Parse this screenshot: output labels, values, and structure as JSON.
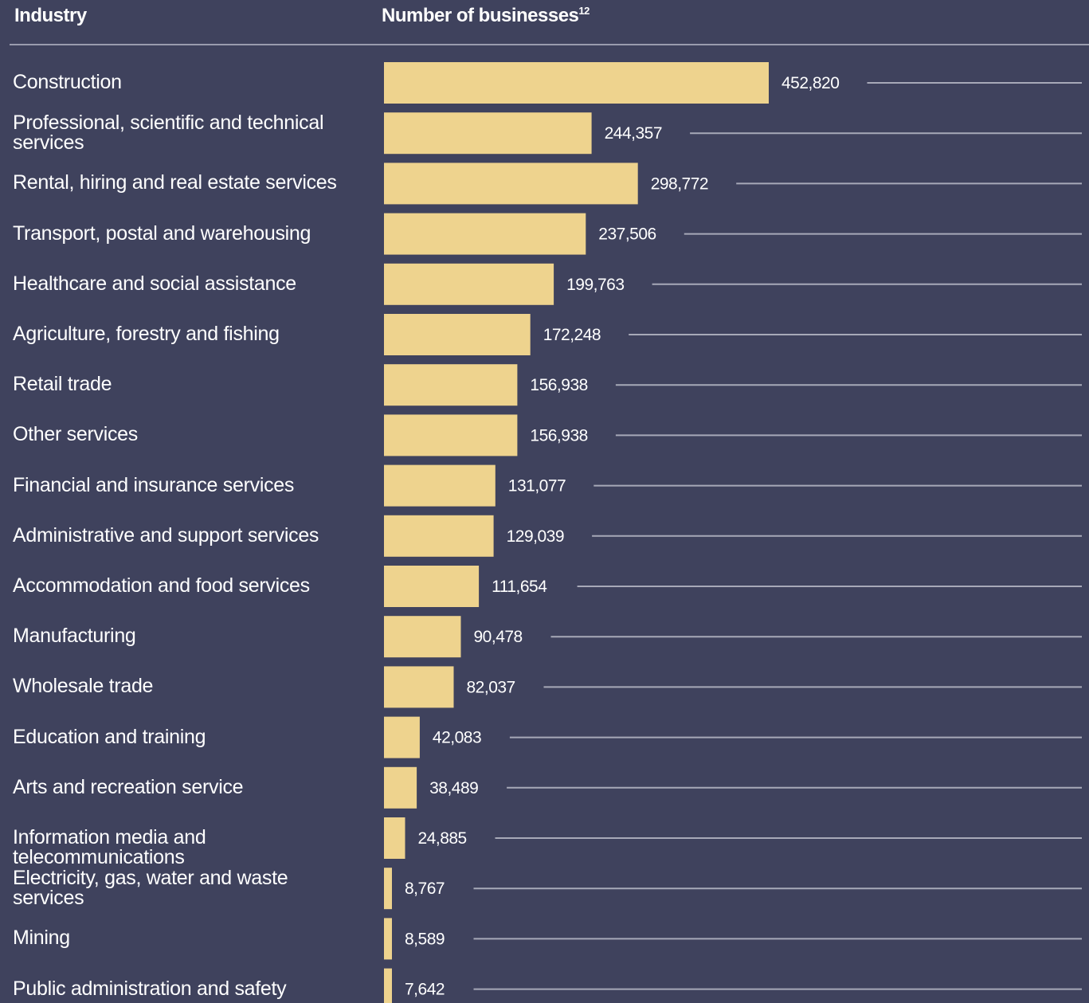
{
  "header": {
    "industry": "Industry",
    "businesses": "Number of businesses",
    "footnote": "12"
  },
  "colors": {
    "background": "#3f425d",
    "bar": "#eed38e",
    "leader": "#a7a9b8",
    "text": "#ffffff"
  },
  "chart_data": {
    "type": "bar",
    "orientation": "horizontal",
    "categories": [
      "Construction",
      "Professional, scientific and technical services",
      "Rental, hiring and real estate services",
      "Transport, postal and warehousing",
      "Healthcare and social assistance",
      "Agriculture, forestry and fishing",
      "Retail trade",
      "Other services",
      "Financial and insurance services",
      "Administrative and support services",
      "Accommodation and food services",
      "Manufacturing",
      "Wholesale trade",
      "Education and training",
      "Arts and recreation service",
      "Information media and telecommunications",
      "Electricity, gas, water and waste services",
      "Mining",
      "Public administration and safety"
    ],
    "values": [
      452820,
      244357,
      298772,
      237506,
      199763,
      172248,
      156938,
      156938,
      131077,
      129039,
      111654,
      90478,
      82037,
      42083,
      38489,
      24885,
      8767,
      8589,
      7642
    ],
    "value_labels": [
      "452,820",
      "244,357",
      "298,772",
      "237,506",
      "199,763",
      "172,248",
      "156,938",
      "156,938",
      "131,077",
      "129,039",
      "111,654",
      "90,478",
      "82,037",
      "42,083",
      "38,489",
      "24,885",
      "8,767",
      "8,589",
      "7,642"
    ],
    "title": "",
    "xlabel": "Number of businesses",
    "ylabel": "Industry",
    "xlim": [
      0,
      452820
    ],
    "grid": false,
    "legend": "none"
  }
}
